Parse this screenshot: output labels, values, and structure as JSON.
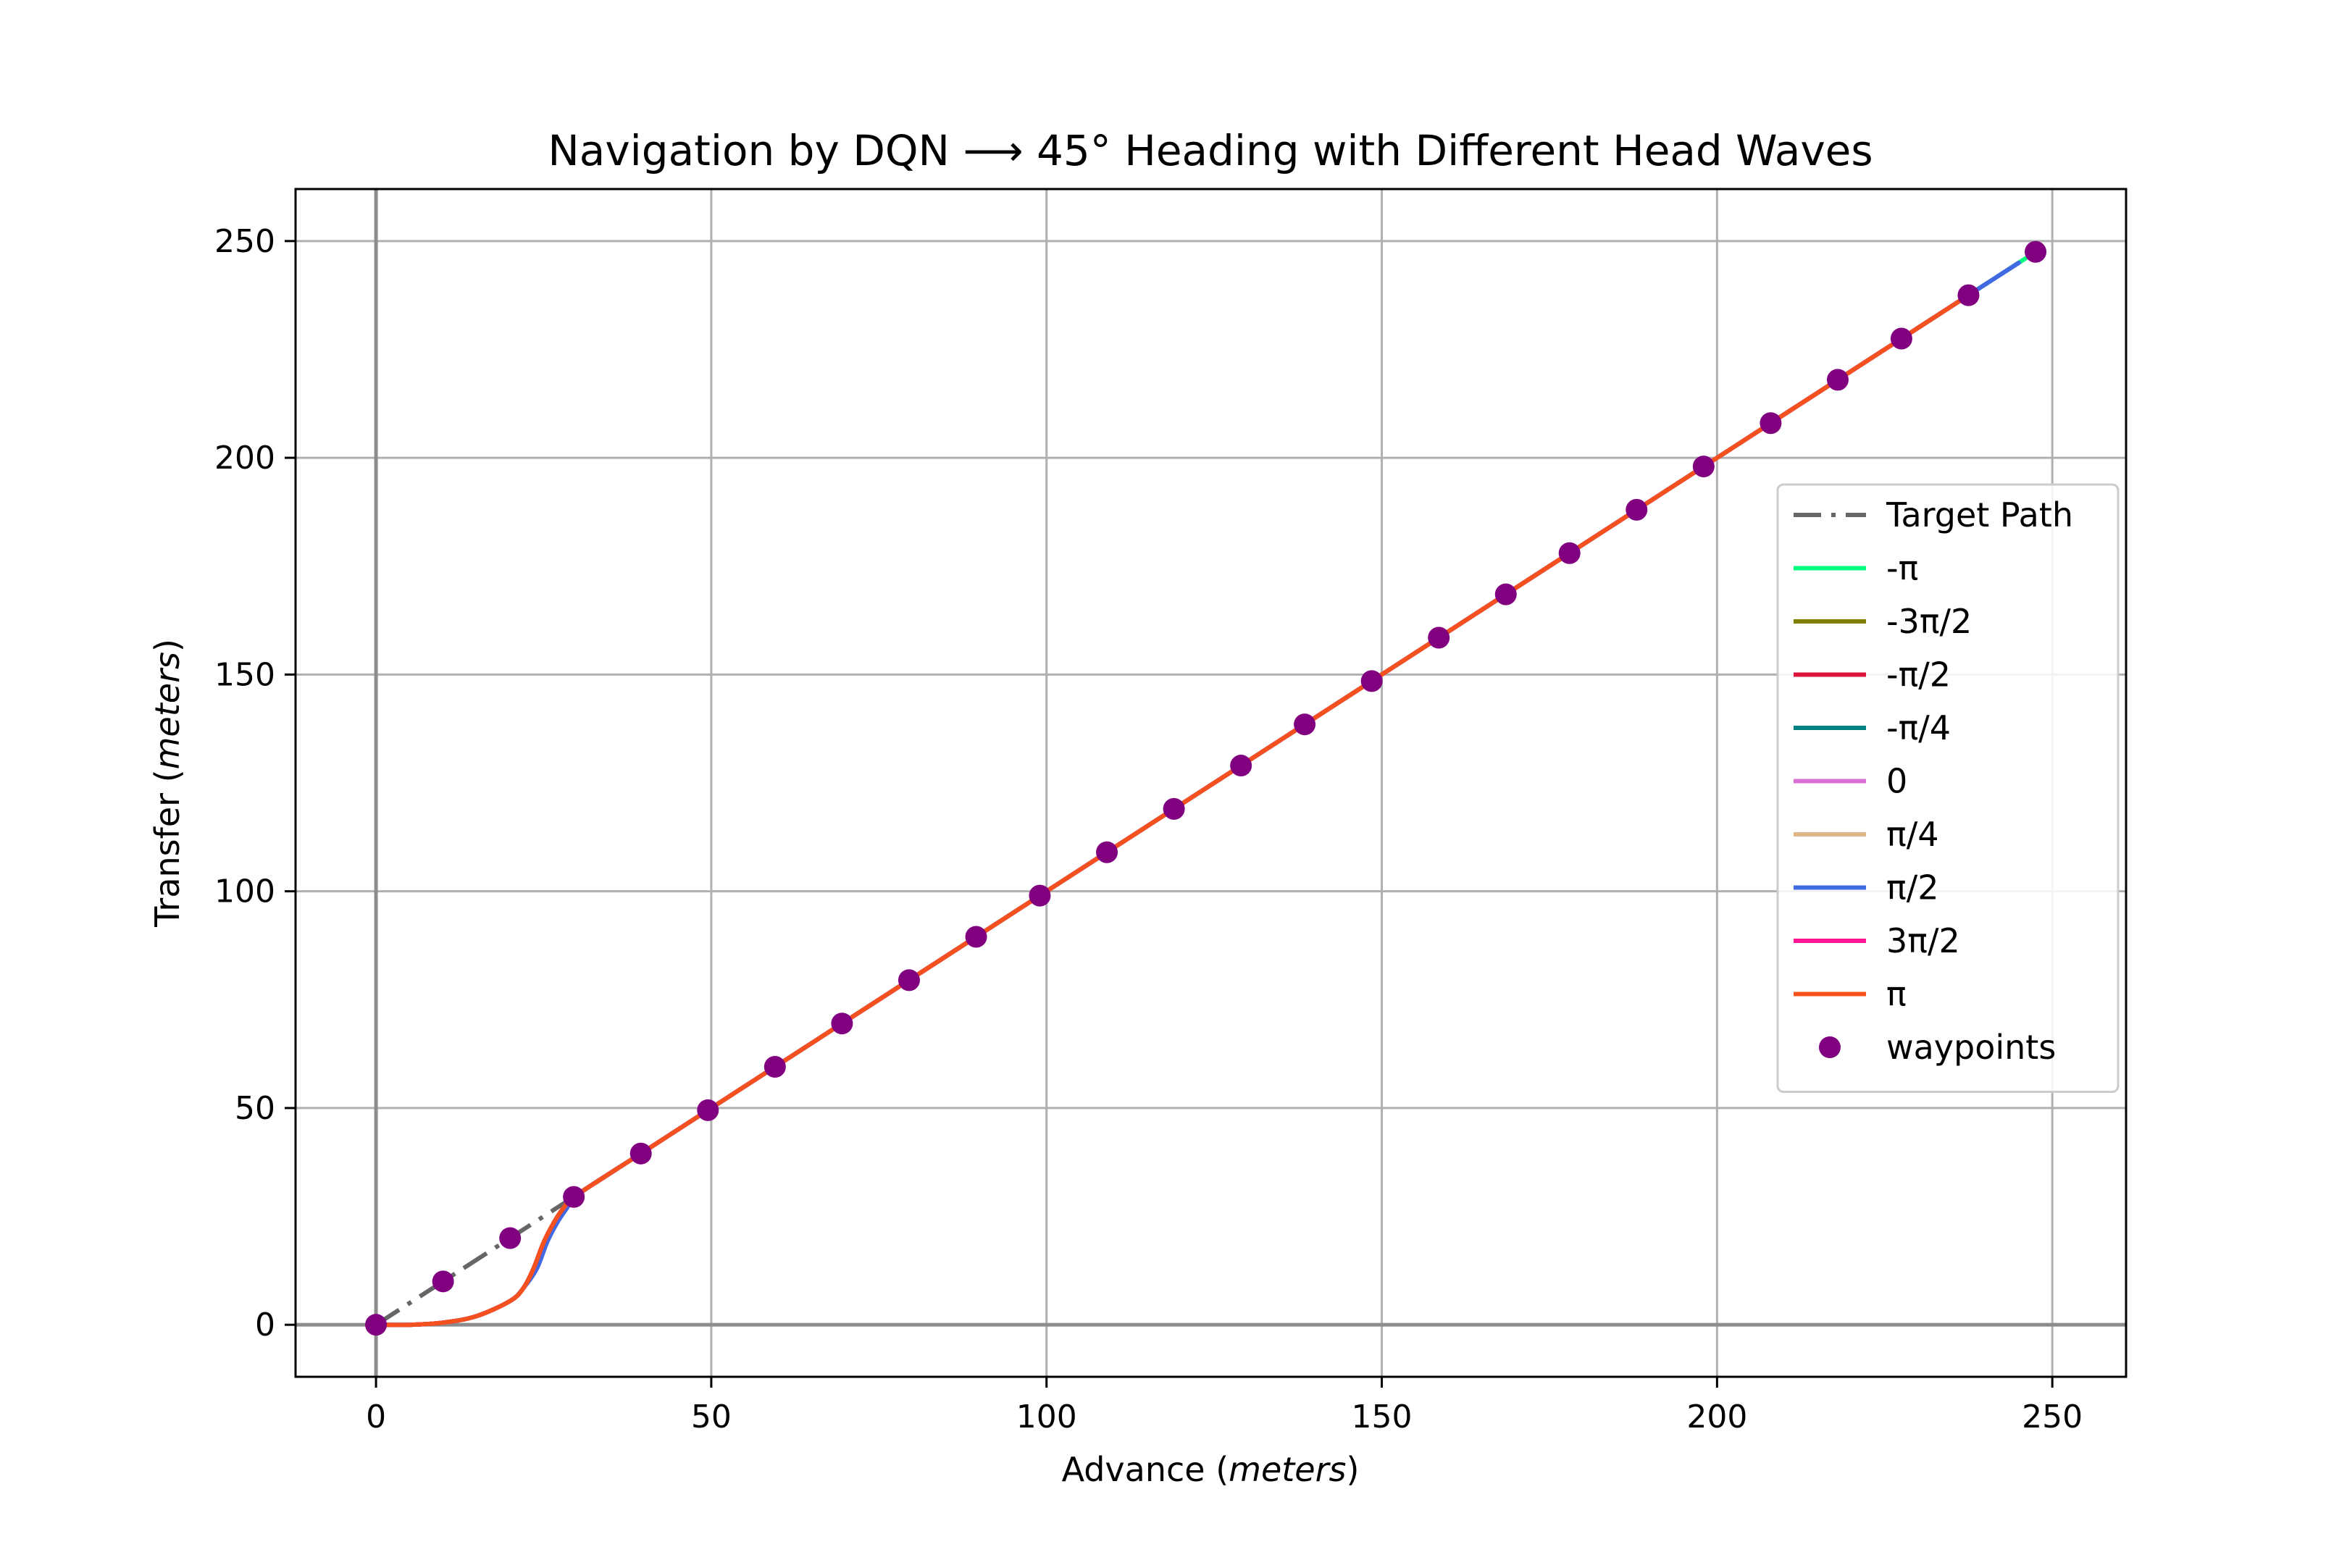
{
  "chart_data": {
    "type": "line",
    "title": "Navigation by DQN ⟶ 45° Heading with Different Head Waves",
    "xlabel": {
      "text": "Advance",
      "unit": "meters"
    },
    "ylabel": {
      "text": "Transfer",
      "unit": "meters"
    },
    "xlim": [
      -12,
      261
    ],
    "ylim": [
      -12,
      262
    ],
    "xticks": [
      0,
      50,
      100,
      150,
      200,
      250
    ],
    "yticks": [
      0,
      50,
      100,
      150,
      200,
      250
    ],
    "grid": true,
    "legend_position": "center-right",
    "target_path": {
      "name": "Target Path",
      "color": "#666666",
      "style": "dash-dot",
      "x": [
        0,
        247.5
      ],
      "y": [
        0,
        247.5
      ]
    },
    "series": [
      {
        "name": "-π",
        "color": "#00ff7f",
        "x": [
          0,
          5,
          10,
          15,
          20,
          22,
          23.5,
          25,
          26.5,
          28,
          30,
          40,
          50,
          75,
          100,
          125,
          150,
          175,
          200,
          225,
          237,
          246
        ],
        "y": [
          0,
          0,
          0.5,
          2,
          5.5,
          8.5,
          13,
          19,
          23.5,
          27,
          30,
          40,
          50,
          75,
          100,
          125,
          150,
          175,
          200,
          225,
          237,
          246
        ]
      },
      {
        "name": "-3π/2",
        "color": "#808000",
        "x": [
          0,
          5,
          10,
          15,
          20,
          22,
          23.5,
          25,
          26.5,
          28,
          30,
          40,
          50,
          75,
          100,
          125,
          150,
          175,
          200,
          225,
          237
        ],
        "y": [
          0,
          0,
          0.5,
          2,
          5.5,
          8.5,
          13,
          19,
          23.5,
          27,
          30,
          40,
          50,
          75,
          100,
          125,
          150,
          175,
          200,
          225,
          237
        ]
      },
      {
        "name": "-π/2",
        "color": "#dc143c",
        "x": [
          0,
          5,
          10,
          15,
          20,
          22,
          23.5,
          25,
          26.5,
          28,
          30,
          40,
          50,
          75,
          100,
          125,
          150,
          175,
          200,
          225,
          237
        ],
        "y": [
          0,
          0,
          0.5,
          2,
          5.5,
          8.5,
          13,
          19,
          23.5,
          27,
          30,
          40,
          50,
          75,
          100,
          125,
          150,
          175,
          200,
          225,
          237
        ]
      },
      {
        "name": "-π/4",
        "color": "#008080",
        "x": [
          0,
          5,
          10,
          15,
          20,
          22,
          23.5,
          25,
          26.5,
          28,
          30,
          40,
          50,
          75,
          100,
          125,
          150,
          175,
          200,
          225,
          237
        ],
        "y": [
          0,
          0,
          0.5,
          2,
          5.5,
          8.5,
          13,
          19,
          23.5,
          27,
          30,
          40,
          50,
          75,
          100,
          125,
          150,
          175,
          200,
          225,
          237
        ]
      },
      {
        "name": "0",
        "color": "#da70d6",
        "x": [
          0,
          5,
          10,
          15,
          20,
          22,
          23.5,
          25,
          26.5,
          28,
          30,
          40,
          50,
          75,
          100,
          125,
          150,
          175,
          200,
          225,
          237
        ],
        "y": [
          0,
          0,
          0.5,
          2,
          5.5,
          8.5,
          13,
          19,
          23.5,
          27,
          30,
          40,
          50,
          75,
          100,
          125,
          150,
          175,
          200,
          225,
          237
        ]
      },
      {
        "name": "π/4",
        "color": "#deb887",
        "x": [
          0,
          5,
          10,
          15,
          20,
          22,
          23.5,
          25,
          26.5,
          28,
          30,
          40,
          50,
          75,
          100,
          125,
          150,
          175,
          200,
          225,
          237
        ],
        "y": [
          0,
          0,
          0.5,
          2,
          5.5,
          8.5,
          13,
          19,
          23.5,
          27,
          30,
          40,
          50,
          75,
          100,
          125,
          150,
          175,
          200,
          225,
          237
        ]
      },
      {
        "name": "π/2",
        "color": "#4169e1",
        "x": [
          0,
          5,
          10,
          15,
          20,
          22,
          24,
          25.5,
          27,
          28.5,
          30,
          40,
          50,
          75,
          100,
          125,
          150,
          175,
          200,
          225,
          237,
          245
        ],
        "y": [
          0,
          0,
          0.5,
          2,
          5.5,
          8.5,
          13,
          19,
          23.5,
          27,
          30,
          40,
          50,
          75,
          100,
          125,
          150,
          175,
          200,
          225,
          237,
          245
        ]
      },
      {
        "name": "3π/2",
        "color": "#ff1493",
        "x": [
          0,
          5,
          10,
          15,
          20,
          22,
          23.5,
          25,
          26.5,
          28,
          30,
          40,
          50,
          75,
          100,
          125,
          150,
          175,
          200,
          225,
          237
        ],
        "y": [
          0,
          0,
          0.5,
          2,
          5.5,
          8.5,
          13,
          19,
          23.5,
          27,
          30,
          40,
          50,
          75,
          100,
          125,
          150,
          175,
          200,
          225,
          237
        ]
      },
      {
        "name": "π",
        "color": "#f4511e",
        "x": [
          0,
          5,
          10,
          15,
          20,
          22,
          23.5,
          25,
          26.5,
          28,
          30,
          40,
          50,
          75,
          100,
          125,
          150,
          175,
          200,
          225,
          237
        ],
        "y": [
          0,
          0,
          0.5,
          2,
          5.5,
          8.5,
          13,
          19,
          23.5,
          27,
          30,
          40,
          50,
          75,
          100,
          125,
          150,
          175,
          200,
          225,
          237
        ]
      }
    ],
    "waypoints": {
      "name": "waypoints",
      "color": "#800080",
      "x": [
        0,
        10,
        20,
        29.5,
        39.5,
        49.5,
        59.5,
        69.5,
        79.5,
        89.5,
        99,
        109,
        119,
        129,
        138.5,
        148.5,
        158.5,
        168.5,
        178,
        188,
        198,
        208,
        218,
        227.5,
        237.5,
        247.5
      ],
      "y": [
        0,
        10,
        20,
        29.5,
        39.5,
        49.5,
        59.5,
        69.5,
        79.5,
        89.5,
        99,
        109,
        119,
        129,
        138.5,
        148.5,
        158.5,
        168.5,
        178,
        188,
        198,
        208,
        218,
        227.5,
        237.5,
        247.5
      ]
    }
  }
}
